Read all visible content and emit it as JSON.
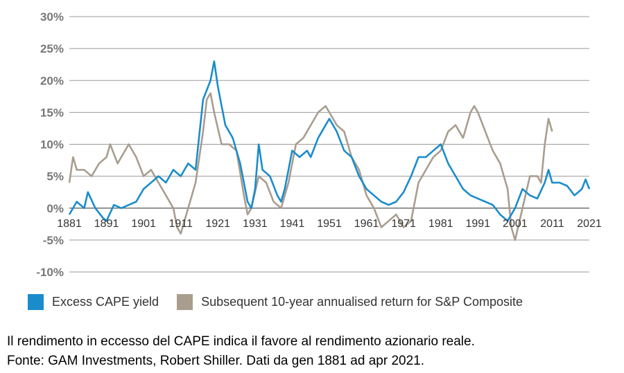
{
  "chart_data": {
    "type": "line",
    "title": "",
    "xlabel": "",
    "ylabel": "",
    "ylim": [
      -10,
      30
    ],
    "xlim": [
      1881,
      2021
    ],
    "y_ticks": [
      "30%",
      "25%",
      "20%",
      "15%",
      "10%",
      "5%",
      "0%",
      "-5%",
      "-10%"
    ],
    "y_tick_values": [
      30,
      25,
      20,
      15,
      10,
      5,
      0,
      -5,
      -10
    ],
    "x_ticks": [
      "1881",
      "1891",
      "1901",
      "1911",
      "1921",
      "1931",
      "1941",
      "1951",
      "1961",
      "1971",
      "1981",
      "1991",
      "2001",
      "2011",
      "2021"
    ],
    "x_tick_values": [
      1881,
      1891,
      1901,
      1911,
      1921,
      1931,
      1941,
      1951,
      1961,
      1971,
      1981,
      1991,
      2001,
      2011,
      2021
    ],
    "grid": true,
    "series": [
      {
        "name": "Excess CAPE yield",
        "color": "#1a8ccc",
        "points": [
          [
            1881,
            -1
          ],
          [
            1883,
            1
          ],
          [
            1885,
            0
          ],
          [
            1886,
            2.5
          ],
          [
            1888,
            0
          ],
          [
            1890,
            -1.5
          ],
          [
            1891,
            -2
          ],
          [
            1893,
            0.5
          ],
          [
            1895,
            0
          ],
          [
            1897,
            0.5
          ],
          [
            1899,
            1
          ],
          [
            1901,
            3
          ],
          [
            1903,
            4
          ],
          [
            1905,
            5
          ],
          [
            1907,
            4
          ],
          [
            1909,
            6
          ],
          [
            1911,
            5
          ],
          [
            1913,
            7
          ],
          [
            1915,
            6
          ],
          [
            1917,
            17
          ],
          [
            1919,
            20
          ],
          [
            1920,
            23
          ],
          [
            1921,
            19
          ],
          [
            1923,
            13
          ],
          [
            1925,
            11
          ],
          [
            1927,
            7
          ],
          [
            1929,
            1
          ],
          [
            1930,
            0
          ],
          [
            1931,
            3
          ],
          [
            1932,
            10
          ],
          [
            1933,
            6
          ],
          [
            1935,
            5
          ],
          [
            1937,
            2
          ],
          [
            1938,
            1
          ],
          [
            1939,
            3
          ],
          [
            1940,
            6
          ],
          [
            1941,
            9
          ],
          [
            1943,
            8
          ],
          [
            1945,
            9
          ],
          [
            1946,
            8
          ],
          [
            1948,
            11
          ],
          [
            1950,
            13
          ],
          [
            1951,
            14
          ],
          [
            1953,
            12
          ],
          [
            1955,
            9
          ],
          [
            1957,
            8
          ],
          [
            1959,
            5
          ],
          [
            1961,
            3
          ],
          [
            1963,
            2
          ],
          [
            1965,
            1
          ],
          [
            1967,
            0.5
          ],
          [
            1969,
            1
          ],
          [
            1971,
            2.5
          ],
          [
            1973,
            5
          ],
          [
            1975,
            8
          ],
          [
            1977,
            8
          ],
          [
            1979,
            9
          ],
          [
            1981,
            10
          ],
          [
            1983,
            7
          ],
          [
            1985,
            5
          ],
          [
            1987,
            3
          ],
          [
            1989,
            2
          ],
          [
            1991,
            1.5
          ],
          [
            1993,
            1
          ],
          [
            1995,
            0.5
          ],
          [
            1997,
            -1
          ],
          [
            1999,
            -2
          ],
          [
            2001,
            0
          ],
          [
            2003,
            3
          ],
          [
            2005,
            2
          ],
          [
            2007,
            1.5
          ],
          [
            2009,
            4
          ],
          [
            2010,
            6
          ],
          [
            2011,
            4
          ],
          [
            2013,
            4
          ],
          [
            2015,
            3.5
          ],
          [
            2017,
            2
          ],
          [
            2019,
            3
          ],
          [
            2020,
            4.5
          ],
          [
            2021,
            3
          ]
        ]
      },
      {
        "name": "Subsequent 10-year annualised return for S&P Composite",
        "color": "#a89d8f",
        "points": [
          [
            1881,
            4
          ],
          [
            1882,
            8
          ],
          [
            1883,
            6
          ],
          [
            1885,
            6
          ],
          [
            1887,
            5
          ],
          [
            1889,
            7
          ],
          [
            1891,
            8
          ],
          [
            1892,
            10
          ],
          [
            1894,
            7
          ],
          [
            1896,
            9
          ],
          [
            1897,
            10
          ],
          [
            1899,
            8
          ],
          [
            1901,
            5
          ],
          [
            1903,
            6
          ],
          [
            1905,
            4
          ],
          [
            1907,
            2
          ],
          [
            1909,
            0
          ],
          [
            1910,
            -3
          ],
          [
            1911,
            -4
          ],
          [
            1913,
            0
          ],
          [
            1915,
            4
          ],
          [
            1917,
            12
          ],
          [
            1918,
            17
          ],
          [
            1919,
            18
          ],
          [
            1920,
            15
          ],
          [
            1922,
            10
          ],
          [
            1924,
            10
          ],
          [
            1926,
            9
          ],
          [
            1928,
            2
          ],
          [
            1929,
            -1
          ],
          [
            1930,
            0
          ],
          [
            1932,
            5
          ],
          [
            1934,
            4
          ],
          [
            1936,
            1
          ],
          [
            1938,
            0
          ],
          [
            1940,
            4
          ],
          [
            1942,
            10
          ],
          [
            1944,
            11
          ],
          [
            1946,
            13
          ],
          [
            1947,
            14
          ],
          [
            1948,
            15
          ],
          [
            1950,
            16
          ],
          [
            1951,
            15
          ],
          [
            1953,
            13
          ],
          [
            1955,
            12
          ],
          [
            1957,
            8
          ],
          [
            1959,
            6
          ],
          [
            1961,
            2
          ],
          [
            1963,
            0
          ],
          [
            1965,
            -3
          ],
          [
            1967,
            -2
          ],
          [
            1969,
            -1
          ],
          [
            1971,
            -3
          ],
          [
            1973,
            -2
          ],
          [
            1975,
            4
          ],
          [
            1977,
            6
          ],
          [
            1979,
            8
          ],
          [
            1981,
            9
          ],
          [
            1983,
            12
          ],
          [
            1985,
            13
          ],
          [
            1987,
            11
          ],
          [
            1989,
            15
          ],
          [
            1990,
            16
          ],
          [
            1991,
            15
          ],
          [
            1993,
            12
          ],
          [
            1995,
            9
          ],
          [
            1997,
            7
          ],
          [
            1999,
            3
          ],
          [
            2000,
            -3
          ],
          [
            2001,
            -5
          ],
          [
            2003,
            0
          ],
          [
            2005,
            5
          ],
          [
            2007,
            5
          ],
          [
            2008,
            4
          ],
          [
            2009,
            10
          ],
          [
            2010,
            14
          ],
          [
            2011,
            12
          ]
        ]
      }
    ]
  },
  "caption": {
    "line1": "Il rendimento in eccesso del CAPE indica il favore al rendimento azionario reale.",
    "line2": "Fonte: GAM Investments, Robert Shiller. Dati da gen 1881 ad apr 2021."
  }
}
